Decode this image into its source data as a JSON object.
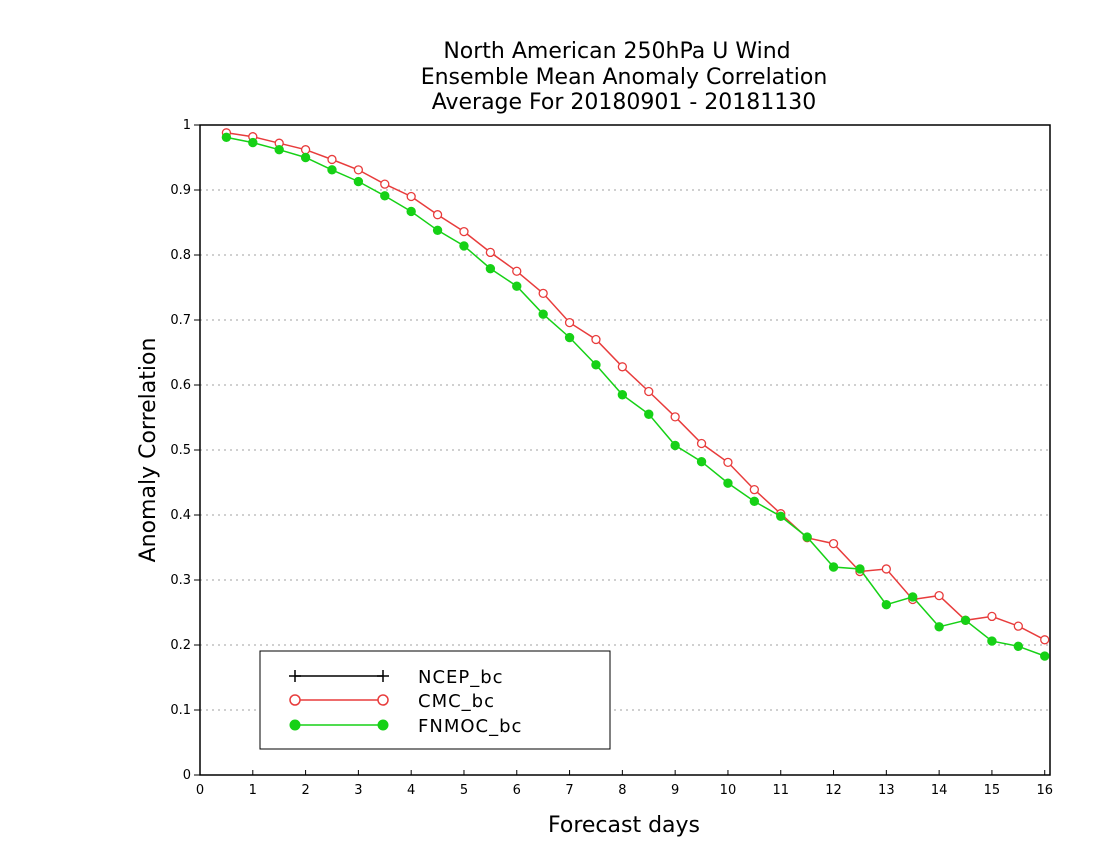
{
  "chart_data": {
    "type": "line",
    "title_lines": [
      "North American 250hPa U Wind",
      "Ensemble Mean Anomaly Correlation",
      "Average For 20180901 - 20181130"
    ],
    "xlabel": "Forecast days",
    "ylabel": "Anomaly Correlation",
    "xlim": [
      0,
      16.1
    ],
    "ylim": [
      0,
      1
    ],
    "xticks": [
      0,
      1,
      2,
      3,
      4,
      5,
      6,
      7,
      8,
      9,
      10,
      11,
      12,
      13,
      14,
      15,
      16
    ],
    "yticks": [
      0,
      0.1,
      0.2,
      0.3,
      0.4,
      0.5,
      0.6,
      0.7,
      0.8,
      0.9,
      1
    ],
    "grid": true,
    "legend_position": "bottom-left",
    "series": [
      {
        "name": "NCEP_bc",
        "color": "#000000",
        "marker": "plus",
        "x": [],
        "y": []
      },
      {
        "name": "CMC_bc",
        "color": "#e83c3c",
        "marker": "open-circle",
        "x": [
          0.5,
          1,
          1.5,
          2,
          2.5,
          3,
          3.5,
          4,
          4.5,
          5,
          5.5,
          6,
          6.5,
          7,
          7.5,
          8,
          8.5,
          9,
          9.5,
          10,
          10.5,
          11,
          11.5,
          12,
          12.5,
          13,
          13.5,
          14,
          14.5,
          15,
          15.5,
          16
        ],
        "y": [
          0.988,
          0.982,
          0.972,
          0.962,
          0.947,
          0.931,
          0.909,
          0.89,
          0.862,
          0.836,
          0.804,
          0.775,
          0.741,
          0.696,
          0.67,
          0.628,
          0.59,
          0.551,
          0.51,
          0.481,
          0.439,
          0.402,
          0.365,
          0.356,
          0.313,
          0.317,
          0.27,
          0.276,
          0.238,
          0.244,
          0.229,
          0.208
        ]
      },
      {
        "name": "FNMOC_bc",
        "color": "#16d116",
        "marker": "filled-circle",
        "x": [
          0.5,
          1,
          1.5,
          2,
          2.5,
          3,
          3.5,
          4,
          4.5,
          5,
          5.5,
          6,
          6.5,
          7,
          7.5,
          8,
          8.5,
          9,
          9.5,
          10,
          10.5,
          11,
          11.5,
          12,
          12.5,
          13,
          13.5,
          14,
          14.5,
          15,
          15.5,
          16
        ],
        "y": [
          0.981,
          0.973,
          0.962,
          0.95,
          0.931,
          0.913,
          0.891,
          0.867,
          0.838,
          0.814,
          0.779,
          0.752,
          0.709,
          0.673,
          0.631,
          0.585,
          0.555,
          0.507,
          0.482,
          0.449,
          0.421,
          0.398,
          0.366,
          0.32,
          0.317,
          0.262,
          0.274,
          0.228,
          0.238,
          0.206,
          0.198,
          0.183
        ]
      }
    ]
  }
}
